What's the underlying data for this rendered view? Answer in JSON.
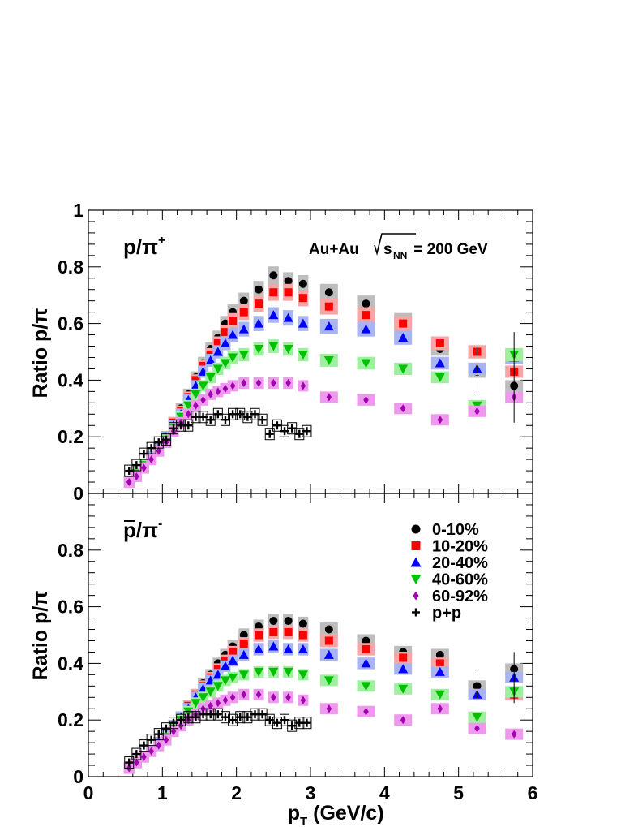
{
  "chart_data": [
    {
      "type": "scatter",
      "panel_label": {
        "main": "p/π",
        "sup": "+"
      },
      "annotation": {
        "system": "Au+Au ",
        "sqrt_s": "s",
        "sqrt_sub": "NN",
        "energy": " = 200 GeV"
      },
      "ylabel": "Ratio p/π",
      "ylim": [
        0,
        1
      ],
      "y_ticks": [
        "0",
        "0.2",
        "0.4",
        "0.6",
        "0.8",
        "1"
      ],
      "series": [
        {
          "name": "0-10%",
          "x": [
            0.55,
            0.65,
            0.75,
            0.85,
            0.95,
            1.05,
            1.15,
            1.25,
            1.35,
            1.45,
            1.55,
            1.65,
            1.75,
            1.85,
            1.95,
            2.1,
            2.3,
            2.5,
            2.7,
            2.9,
            3.25,
            3.75,
            4.25,
            4.75,
            5.25,
            5.75
          ],
          "y": [
            0.04,
            0.07,
            0.1,
            0.13,
            0.16,
            0.2,
            0.25,
            0.3,
            0.35,
            0.41,
            0.46,
            0.51,
            0.55,
            0.6,
            0.64,
            0.68,
            0.72,
            0.77,
            0.75,
            0.74,
            0.71,
            0.67,
            0.61,
            0.51,
            0.43,
            0.38
          ]
        },
        {
          "name": "10-20%",
          "x": [
            0.55,
            0.65,
            0.75,
            0.85,
            0.95,
            1.05,
            1.15,
            1.25,
            1.35,
            1.45,
            1.55,
            1.65,
            1.75,
            1.85,
            1.95,
            2.1,
            2.3,
            2.5,
            2.7,
            2.9,
            3.25,
            3.75,
            4.25,
            4.75,
            5.25,
            5.75
          ],
          "y": [
            0.04,
            0.07,
            0.1,
            0.13,
            0.16,
            0.2,
            0.25,
            0.29,
            0.34,
            0.4,
            0.45,
            0.49,
            0.53,
            0.57,
            0.61,
            0.64,
            0.67,
            0.71,
            0.71,
            0.69,
            0.66,
            0.63,
            0.6,
            0.53,
            0.5,
            0.43
          ]
        },
        {
          "name": "20-40%",
          "x": [
            0.55,
            0.65,
            0.75,
            0.85,
            0.95,
            1.05,
            1.15,
            1.25,
            1.35,
            1.45,
            1.55,
            1.65,
            1.75,
            1.85,
            1.95,
            2.1,
            2.3,
            2.5,
            2.7,
            2.9,
            3.25,
            3.75,
            4.25,
            4.75,
            5.25,
            5.75
          ],
          "y": [
            0.04,
            0.07,
            0.1,
            0.13,
            0.16,
            0.2,
            0.24,
            0.28,
            0.33,
            0.38,
            0.43,
            0.47,
            0.5,
            0.53,
            0.56,
            0.58,
            0.6,
            0.63,
            0.62,
            0.6,
            0.59,
            0.58,
            0.55,
            0.46,
            0.44,
            0.48
          ]
        },
        {
          "name": "40-60%",
          "x": [
            0.55,
            0.65,
            0.75,
            0.85,
            0.95,
            1.05,
            1.15,
            1.25,
            1.35,
            1.45,
            1.55,
            1.65,
            1.75,
            1.85,
            1.95,
            2.1,
            2.3,
            2.5,
            2.7,
            2.9,
            3.25,
            3.75,
            4.25,
            4.75,
            5.25,
            5.75
          ],
          "y": [
            0.04,
            0.07,
            0.1,
            0.12,
            0.15,
            0.19,
            0.23,
            0.27,
            0.31,
            0.35,
            0.38,
            0.41,
            0.44,
            0.46,
            0.48,
            0.49,
            0.51,
            0.52,
            0.51,
            0.49,
            0.47,
            0.46,
            0.44,
            0.41,
            0.31,
            0.49
          ]
        },
        {
          "name": "60-92%",
          "x": [
            0.55,
            0.65,
            0.75,
            0.85,
            0.95,
            1.05,
            1.15,
            1.25,
            1.35,
            1.45,
            1.55,
            1.65,
            1.75,
            1.85,
            1.95,
            2.1,
            2.3,
            2.5,
            2.7,
            2.9,
            3.25,
            3.75,
            4.25,
            4.75,
            5.25,
            5.75
          ],
          "y": [
            0.04,
            0.06,
            0.09,
            0.12,
            0.15,
            0.18,
            0.22,
            0.25,
            0.28,
            0.31,
            0.33,
            0.35,
            0.36,
            0.37,
            0.38,
            0.39,
            0.39,
            0.39,
            0.39,
            0.38,
            0.34,
            0.33,
            0.3,
            0.26,
            0.29,
            0.34
          ]
        },
        {
          "name": "p+p",
          "x": [
            0.55,
            0.65,
            0.75,
            0.85,
            0.95,
            1.05,
            1.15,
            1.25,
            1.35,
            1.45,
            1.55,
            1.65,
            1.75,
            1.85,
            1.95,
            2.05,
            2.15,
            2.25,
            2.35,
            2.45,
            2.55,
            2.65,
            2.75,
            2.85,
            2.95
          ],
          "y": [
            0.08,
            0.1,
            0.14,
            0.16,
            0.18,
            0.19,
            0.23,
            0.24,
            0.24,
            0.27,
            0.27,
            0.26,
            0.28,
            0.26,
            0.28,
            0.28,
            0.27,
            0.28,
            0.26,
            0.21,
            0.24,
            0.22,
            0.23,
            0.21,
            0.22
          ]
        }
      ],
      "error_bars": [
        {
          "series": "0-10%",
          "x": 5.25,
          "low": 0.35,
          "high": 0.52
        },
        {
          "series": "0-10%",
          "x": 5.75,
          "low": 0.25,
          "high": 0.57
        }
      ]
    },
    {
      "type": "scatter",
      "panel_label": {
        "main": "p/π",
        "sup": "-"
      },
      "ylabel": "Ratio p/π",
      "ylim": [
        0,
        1
      ],
      "y_ticks": [
        "0",
        "0.2",
        "0.4",
        "0.6",
        "0.8"
      ],
      "xlabel": {
        "main": "p",
        "sub": "T",
        "rest": " (GeV/c)"
      },
      "xlim": [
        0,
        6
      ],
      "x_ticks": [
        "0",
        "1",
        "2",
        "3",
        "4",
        "5",
        "6"
      ],
      "legend": [
        "0-10%",
        "10-20%",
        "20-40%",
        "40-60%",
        "60-92%",
        "p+p"
      ],
      "legend_position": "top-right",
      "series": [
        {
          "name": "0-10%",
          "x": [
            0.55,
            0.65,
            0.75,
            0.85,
            0.95,
            1.05,
            1.15,
            1.25,
            1.35,
            1.45,
            1.55,
            1.65,
            1.75,
            1.85,
            1.95,
            2.1,
            2.3,
            2.5,
            2.7,
            2.9,
            3.25,
            3.75,
            4.25,
            4.75,
            5.25,
            5.75
          ],
          "y": [
            0.03,
            0.05,
            0.07,
            0.09,
            0.12,
            0.15,
            0.18,
            0.21,
            0.25,
            0.29,
            0.33,
            0.36,
            0.4,
            0.43,
            0.46,
            0.5,
            0.53,
            0.55,
            0.55,
            0.54,
            0.52,
            0.48,
            0.44,
            0.43,
            0.32,
            0.38
          ]
        },
        {
          "name": "10-20%",
          "x": [
            0.55,
            0.65,
            0.75,
            0.85,
            0.95,
            1.05,
            1.15,
            1.25,
            1.35,
            1.45,
            1.55,
            1.65,
            1.75,
            1.85,
            1.95,
            2.1,
            2.3,
            2.5,
            2.7,
            2.9,
            3.25,
            3.75,
            4.25,
            4.75,
            5.25,
            5.75
          ],
          "y": [
            0.03,
            0.05,
            0.07,
            0.09,
            0.12,
            0.15,
            0.18,
            0.21,
            0.25,
            0.29,
            0.32,
            0.35,
            0.38,
            0.41,
            0.44,
            0.47,
            0.5,
            0.51,
            0.51,
            0.5,
            0.48,
            0.45,
            0.42,
            0.4,
            0.29,
            0.29
          ]
        },
        {
          "name": "20-40%",
          "x": [
            0.55,
            0.65,
            0.75,
            0.85,
            0.95,
            1.05,
            1.15,
            1.25,
            1.35,
            1.45,
            1.55,
            1.65,
            1.75,
            1.85,
            1.95,
            2.1,
            2.3,
            2.5,
            2.7,
            2.9,
            3.25,
            3.75,
            4.25,
            4.75,
            5.25,
            5.75
          ],
          "y": [
            0.03,
            0.05,
            0.07,
            0.09,
            0.12,
            0.15,
            0.18,
            0.21,
            0.24,
            0.28,
            0.31,
            0.34,
            0.36,
            0.39,
            0.41,
            0.43,
            0.45,
            0.46,
            0.45,
            0.45,
            0.43,
            0.4,
            0.38,
            0.37,
            0.29,
            0.35
          ]
        },
        {
          "name": "40-60%",
          "x": [
            0.55,
            0.65,
            0.75,
            0.85,
            0.95,
            1.05,
            1.15,
            1.25,
            1.35,
            1.45,
            1.55,
            1.65,
            1.75,
            1.85,
            1.95,
            2.1,
            2.3,
            2.5,
            2.7,
            2.9,
            3.25,
            3.75,
            4.25,
            4.75,
            5.25,
            5.75
          ],
          "y": [
            0.03,
            0.05,
            0.07,
            0.09,
            0.11,
            0.14,
            0.17,
            0.2,
            0.23,
            0.26,
            0.28,
            0.3,
            0.32,
            0.34,
            0.35,
            0.36,
            0.37,
            0.37,
            0.37,
            0.36,
            0.34,
            0.32,
            0.31,
            0.29,
            0.21,
            0.3
          ]
        },
        {
          "name": "60-92%",
          "x": [
            0.55,
            0.65,
            0.75,
            0.85,
            0.95,
            1.05,
            1.15,
            1.25,
            1.35,
            1.45,
            1.55,
            1.65,
            1.75,
            1.85,
            1.95,
            2.1,
            2.3,
            2.5,
            2.7,
            2.9,
            3.25,
            3.75,
            4.25,
            4.75,
            5.25,
            5.75
          ],
          "y": [
            0.03,
            0.05,
            0.07,
            0.09,
            0.11,
            0.13,
            0.16,
            0.18,
            0.2,
            0.22,
            0.24,
            0.25,
            0.26,
            0.27,
            0.28,
            0.29,
            0.29,
            0.28,
            0.28,
            0.27,
            0.24,
            0.23,
            0.2,
            0.24,
            0.17,
            0.15
          ]
        },
        {
          "name": "p+p",
          "x": [
            0.55,
            0.65,
            0.75,
            0.85,
            0.95,
            1.05,
            1.15,
            1.25,
            1.35,
            1.45,
            1.55,
            1.65,
            1.75,
            1.85,
            1.95,
            2.05,
            2.15,
            2.25,
            2.35,
            2.45,
            2.55,
            2.65,
            2.75,
            2.85,
            2.95
          ],
          "y": [
            0.05,
            0.08,
            0.11,
            0.13,
            0.15,
            0.17,
            0.19,
            0.2,
            0.21,
            0.21,
            0.22,
            0.22,
            0.22,
            0.21,
            0.2,
            0.21,
            0.21,
            0.22,
            0.22,
            0.2,
            0.19,
            0.2,
            0.18,
            0.19,
            0.19
          ]
        }
      ],
      "error_bars": [
        {
          "series": "0-10%",
          "x": 5.25,
          "low": 0.27,
          "high": 0.37
        },
        {
          "series": "0-10%",
          "x": 5.75,
          "low": 0.26,
          "high": 0.44
        }
      ]
    }
  ],
  "colors": {
    "0-10%": "#000000",
    "10-20%": "#ff0000",
    "20-40%": "#0000ff",
    "40-60%": "#00c000",
    "60-92%": "#a000b0",
    "p+p": "#000000",
    "sys_0-10%": "#bdbdbd",
    "sys_10-20%": "#f6a6a6",
    "sys_20-40%": "#a9b4f2",
    "sys_40-60%": "#9ef09e",
    "sys_60-92%": "#ee99ee"
  },
  "markers": {
    "0-10%": "circle",
    "10-20%": "square",
    "20-40%": "triangle-up",
    "40-60%": "triangle-down",
    "60-92%": "diamond",
    "p+p": "cross"
  }
}
